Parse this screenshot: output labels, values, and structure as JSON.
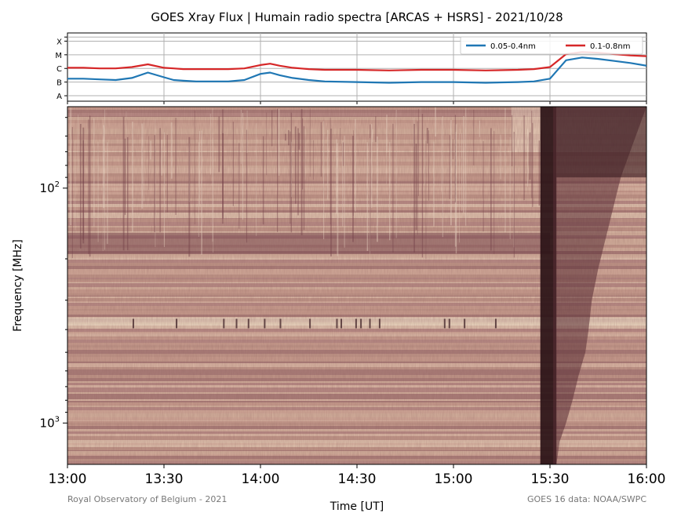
{
  "title": "GOES Xray Flux | Humain radio spectra [ARCAS + HSRS] - 2021/10/28",
  "credit_left": "Royal Observatory of Belgium - 2021",
  "credit_right": "GOES 16 data: NOAA/SWPC",
  "chart_data": [
    {
      "type": "line",
      "name": "goes-xray-flux",
      "yscale": "log",
      "flare_class_labels": [
        "A",
        "B",
        "C",
        "M",
        "X"
      ],
      "ylim_class": [
        0.6,
        5.6
      ],
      "xlim": [
        "13:00",
        "16:00"
      ],
      "grid": true,
      "legend_position": "top-right",
      "series": [
        {
          "name": "0.05-0.4nm",
          "color": "#1f77b4",
          "t_min": [
            0,
            5,
            10,
            15,
            20,
            25,
            30,
            33,
            36,
            40,
            45,
            50,
            55,
            60,
            63,
            66,
            70,
            75,
            80,
            90,
            100,
            110,
            120,
            130,
            140,
            145,
            150,
            155,
            160,
            165,
            170,
            175,
            180
          ],
          "class_level": [
            2.25,
            2.25,
            2.2,
            2.15,
            2.3,
            2.7,
            2.35,
            2.15,
            2.1,
            2.05,
            2.05,
            2.05,
            2.15,
            2.6,
            2.7,
            2.5,
            2.3,
            2.15,
            2.05,
            2.0,
            1.95,
            2.0,
            2.0,
            1.95,
            2.0,
            2.05,
            2.25,
            3.6,
            3.8,
            3.7,
            3.55,
            3.4,
            3.2
          ]
        },
        {
          "name": "0.1-0.8nm",
          "color": "#d62728",
          "t_min": [
            0,
            5,
            10,
            15,
            20,
            25,
            30,
            33,
            36,
            40,
            45,
            50,
            55,
            60,
            63,
            66,
            70,
            75,
            80,
            90,
            100,
            110,
            120,
            130,
            140,
            145,
            150,
            155,
            160,
            165,
            170,
            175,
            180
          ],
          "class_level": [
            3.05,
            3.05,
            3.0,
            3.0,
            3.1,
            3.3,
            3.05,
            3.0,
            2.95,
            2.95,
            2.95,
            2.95,
            3.0,
            3.25,
            3.35,
            3.2,
            3.05,
            2.95,
            2.9,
            2.9,
            2.85,
            2.9,
            2.9,
            2.85,
            2.9,
            2.95,
            3.1,
            4.05,
            4.2,
            4.15,
            4.05,
            3.95,
            3.9
          ]
        }
      ]
    },
    {
      "type": "heatmap",
      "name": "radio-spectrogram",
      "xlabel": "Time [UT]",
      "ylabel": "Frequency [MHz]",
      "yscale": "log",
      "y_inverted": true,
      "ylim": [
        1500,
        45
      ],
      "y_ticks": [
        {
          "label": "10",
          "sup": "2",
          "value": 100
        },
        {
          "label": "10",
          "sup": "3",
          "value": 1000
        }
      ],
      "x_ticks": [
        "13:00",
        "13:30",
        "14:00",
        "14:30",
        "15:00",
        "15:30",
        "16:00"
      ],
      "x_tick_minutes": [
        0,
        30,
        60,
        90,
        120,
        150,
        180
      ],
      "colormap": "pink-brown",
      "burst": {
        "start_time": "15:25",
        "dark_band_minutes": [
          147,
          152
        ],
        "drift_to_MHz": 1500
      }
    }
  ]
}
